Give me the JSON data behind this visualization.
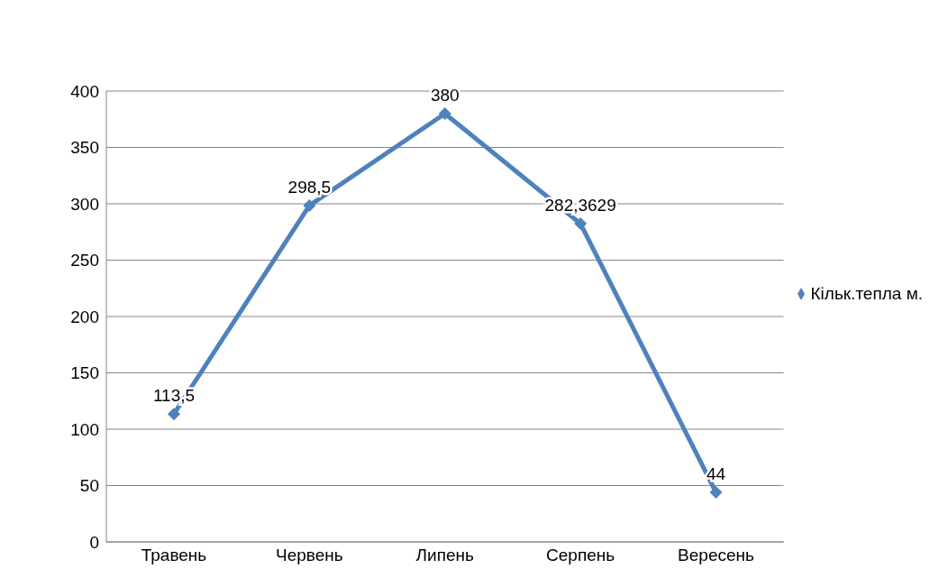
{
  "chart_data": {
    "type": "line",
    "categories": [
      "Травень",
      "Червень",
      "Липень",
      "Серпень",
      "Вересень"
    ],
    "series": [
      {
        "name": "Кільк.тепла м.",
        "color": "#4f81bd",
        "values": [
          113.5,
          298.5,
          380,
          282.3629,
          44
        ],
        "value_labels": [
          "113,5",
          "298,5",
          "380",
          "282,3629",
          "44"
        ]
      }
    ],
    "ylim": [
      0,
      400
    ],
    "yticks": [
      0,
      50,
      100,
      150,
      200,
      250,
      300,
      350,
      400
    ],
    "grid": "y",
    "legend": "right",
    "marker": "diamond",
    "line_style": "solid"
  }
}
